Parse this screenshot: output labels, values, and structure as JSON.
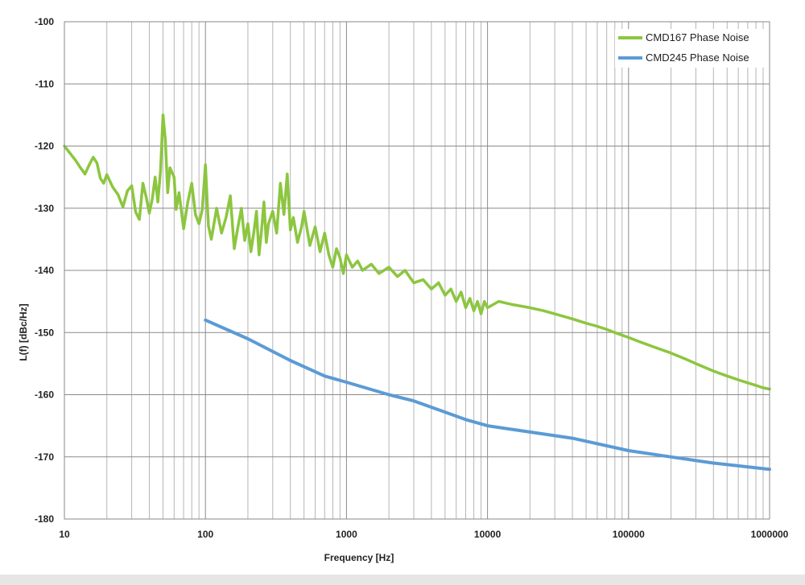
{
  "chart_data": {
    "type": "line",
    "title": "",
    "xlabel": "Frequency [Hz]",
    "ylabel": "L(f) [dBc/Hz]",
    "xscale": "log",
    "xlim": [
      10,
      1000000
    ],
    "ylim": [
      -180,
      -100
    ],
    "x_tick_labels": [
      "10",
      "100",
      "1000",
      "10000",
      "100000",
      "1000000"
    ],
    "y_tick_labels": [
      "-100",
      "-110",
      "-120",
      "-130",
      "-140",
      "-150",
      "-160",
      "-170",
      "-180"
    ],
    "grid": true,
    "legend": "top-right",
    "series": [
      {
        "name": "CMD167 Phase Noise",
        "color": "#8cc63f",
        "points": [
          [
            10,
            -120.0
          ],
          [
            11,
            -121.2
          ],
          [
            12,
            -122.3
          ],
          [
            13,
            -123.5
          ],
          [
            14,
            -124.5
          ],
          [
            15,
            -123.0
          ],
          [
            16,
            -121.8
          ],
          [
            17,
            -122.7
          ],
          [
            18,
            -125.2
          ],
          [
            19,
            -126.0
          ],
          [
            20,
            -124.6
          ],
          [
            22,
            -126.6
          ],
          [
            24,
            -127.8
          ],
          [
            26,
            -129.8
          ],
          [
            28,
            -127.2
          ],
          [
            30,
            -126.4
          ],
          [
            32,
            -130.6
          ],
          [
            34,
            -131.8
          ],
          [
            36,
            -126.0
          ],
          [
            38,
            -128.2
          ],
          [
            40,
            -130.8
          ],
          [
            42,
            -128.5
          ],
          [
            44,
            -125.0
          ],
          [
            46,
            -129.0
          ],
          [
            48,
            -124.0
          ],
          [
            50,
            -115.0
          ],
          [
            52,
            -119.0
          ],
          [
            54,
            -127.5
          ],
          [
            56,
            -123.5
          ],
          [
            60,
            -125.0
          ],
          [
            62,
            -130.2
          ],
          [
            65,
            -127.5
          ],
          [
            70,
            -133.3
          ],
          [
            75,
            -129.0
          ],
          [
            80,
            -126.0
          ],
          [
            85,
            -131.0
          ],
          [
            90,
            -132.5
          ],
          [
            95,
            -130.2
          ],
          [
            100,
            -123.0
          ],
          [
            105,
            -132.8
          ],
          [
            110,
            -135.0
          ],
          [
            120,
            -130.0
          ],
          [
            130,
            -134.0
          ],
          [
            140,
            -131.5
          ],
          [
            150,
            -128.0
          ],
          [
            160,
            -136.5
          ],
          [
            170,
            -133.0
          ],
          [
            180,
            -130.0
          ],
          [
            190,
            -135.2
          ],
          [
            200,
            -132.5
          ],
          [
            210,
            -137.0
          ],
          [
            220,
            -134.0
          ],
          [
            230,
            -130.5
          ],
          [
            240,
            -137.5
          ],
          [
            250,
            -133.5
          ],
          [
            260,
            -129.0
          ],
          [
            270,
            -135.5
          ],
          [
            280,
            -132.5
          ],
          [
            300,
            -130.5
          ],
          [
            320,
            -134.0
          ],
          [
            340,
            -126.0
          ],
          [
            360,
            -131.0
          ],
          [
            380,
            -124.5
          ],
          [
            400,
            -133.5
          ],
          [
            420,
            -131.5
          ],
          [
            450,
            -135.5
          ],
          [
            480,
            -133.0
          ],
          [
            500,
            -130.5
          ],
          [
            550,
            -136.0
          ],
          [
            600,
            -133.0
          ],
          [
            650,
            -137.0
          ],
          [
            700,
            -134.0
          ],
          [
            750,
            -137.5
          ],
          [
            800,
            -139.5
          ],
          [
            850,
            -136.5
          ],
          [
            900,
            -138.0
          ],
          [
            950,
            -140.5
          ],
          [
            1000,
            -137.5
          ],
          [
            1100,
            -139.5
          ],
          [
            1200,
            -138.5
          ],
          [
            1300,
            -140.0
          ],
          [
            1500,
            -139.0
          ],
          [
            1700,
            -140.5
          ],
          [
            2000,
            -139.5
          ],
          [
            2300,
            -141.0
          ],
          [
            2600,
            -140.0
          ],
          [
            3000,
            -142.0
          ],
          [
            3500,
            -141.5
          ],
          [
            4000,
            -143.0
          ],
          [
            4500,
            -142.0
          ],
          [
            5000,
            -144.0
          ],
          [
            5500,
            -143.0
          ],
          [
            6000,
            -145.0
          ],
          [
            6500,
            -143.5
          ],
          [
            7000,
            -146.0
          ],
          [
            7500,
            -144.5
          ],
          [
            8000,
            -146.5
          ],
          [
            8500,
            -145.0
          ],
          [
            9000,
            -147.0
          ],
          [
            9500,
            -145.0
          ],
          [
            10000,
            -146.0
          ],
          [
            12000,
            -145.0
          ],
          [
            15000,
            -145.5
          ],
          [
            20000,
            -146.0
          ],
          [
            25000,
            -146.5
          ],
          [
            30000,
            -147.0
          ],
          [
            40000,
            -147.8
          ],
          [
            50000,
            -148.5
          ],
          [
            60000,
            -149.0
          ],
          [
            70000,
            -149.5
          ],
          [
            80000,
            -150.0
          ],
          [
            100000,
            -150.8
          ],
          [
            120000,
            -151.5
          ],
          [
            150000,
            -152.3
          ],
          [
            200000,
            -153.3
          ],
          [
            250000,
            -154.2
          ],
          [
            300000,
            -155.0
          ],
          [
            400000,
            -156.2
          ],
          [
            500000,
            -157.0
          ],
          [
            600000,
            -157.6
          ],
          [
            700000,
            -158.1
          ],
          [
            800000,
            -158.5
          ],
          [
            900000,
            -158.9
          ],
          [
            1000000,
            -159.1
          ]
        ]
      },
      {
        "name": "CMD245 Phase Noise",
        "color": "#5b9bd5",
        "points": [
          [
            100,
            -148
          ],
          [
            200,
            -151
          ],
          [
            400,
            -154.5
          ],
          [
            700,
            -157
          ],
          [
            1000,
            -158
          ],
          [
            2000,
            -160
          ],
          [
            3000,
            -161
          ],
          [
            7000,
            -164
          ],
          [
            10000,
            -165
          ],
          [
            20000,
            -166
          ],
          [
            40000,
            -167
          ],
          [
            100000,
            -169
          ],
          [
            200000,
            -170
          ],
          [
            400000,
            -171
          ],
          [
            1000000,
            -172
          ]
        ]
      }
    ]
  }
}
